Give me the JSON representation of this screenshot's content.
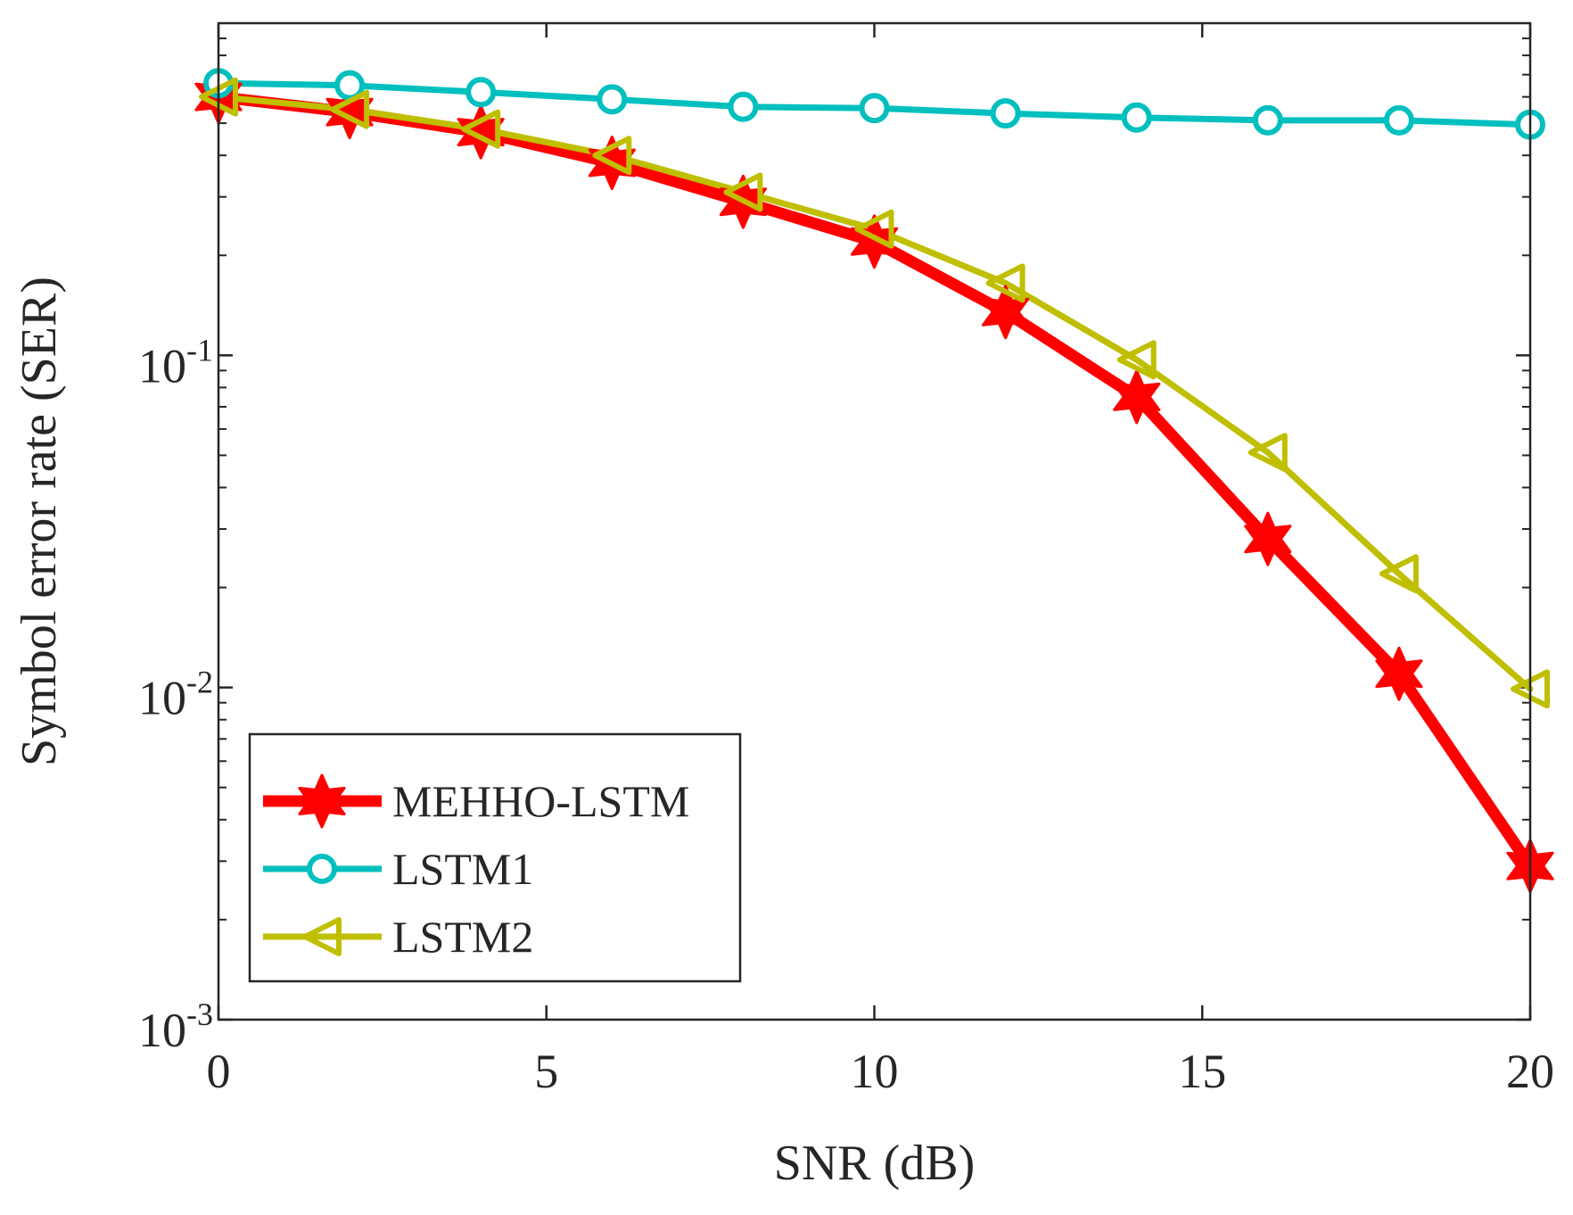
{
  "chart_data": {
    "type": "line",
    "title": "",
    "xlabel": "SNR (dB)",
    "ylabel": "Symbol error rate (SER)",
    "xscale": "linear",
    "yscale": "log",
    "xlim": [
      0,
      20
    ],
    "ylim": [
      0.001,
      1
    ],
    "x_ticks": [
      0,
      5,
      10,
      15,
      20
    ],
    "x_tick_labels": [
      "0",
      "5",
      "10",
      "15",
      "20"
    ],
    "y_ticks": [
      {
        "value": 0.001,
        "base": "10",
        "exp": "-3"
      },
      {
        "value": 0.01,
        "base": "10",
        "exp": "-2"
      },
      {
        "value": 0.1,
        "base": "10",
        "exp": "-1"
      }
    ],
    "grid": false,
    "legend_position": "bottom-left",
    "x": [
      0,
      2,
      4,
      6,
      8,
      10,
      12,
      14,
      16,
      18,
      20
    ],
    "series": [
      {
        "name": "MEHHO-LSTM",
        "color": "#ff0000",
        "marker": "hexagram",
        "values": [
          0.6,
          0.54,
          0.47,
          0.38,
          0.29,
          0.22,
          0.135,
          0.075,
          0.028,
          0.011,
          0.0029
        ]
      },
      {
        "name": "LSTM1",
        "color": "#00bfbf",
        "marker": "circle",
        "values": [
          0.66,
          0.65,
          0.62,
          0.59,
          0.56,
          0.555,
          0.535,
          0.52,
          0.51,
          0.51,
          0.495
        ]
      },
      {
        "name": "LSTM2",
        "color": "#bfbf00",
        "marker": "triangle-left",
        "values": [
          0.6,
          0.55,
          0.48,
          0.4,
          0.31,
          0.24,
          0.165,
          0.097,
          0.051,
          0.022,
          0.0099
        ]
      }
    ]
  }
}
